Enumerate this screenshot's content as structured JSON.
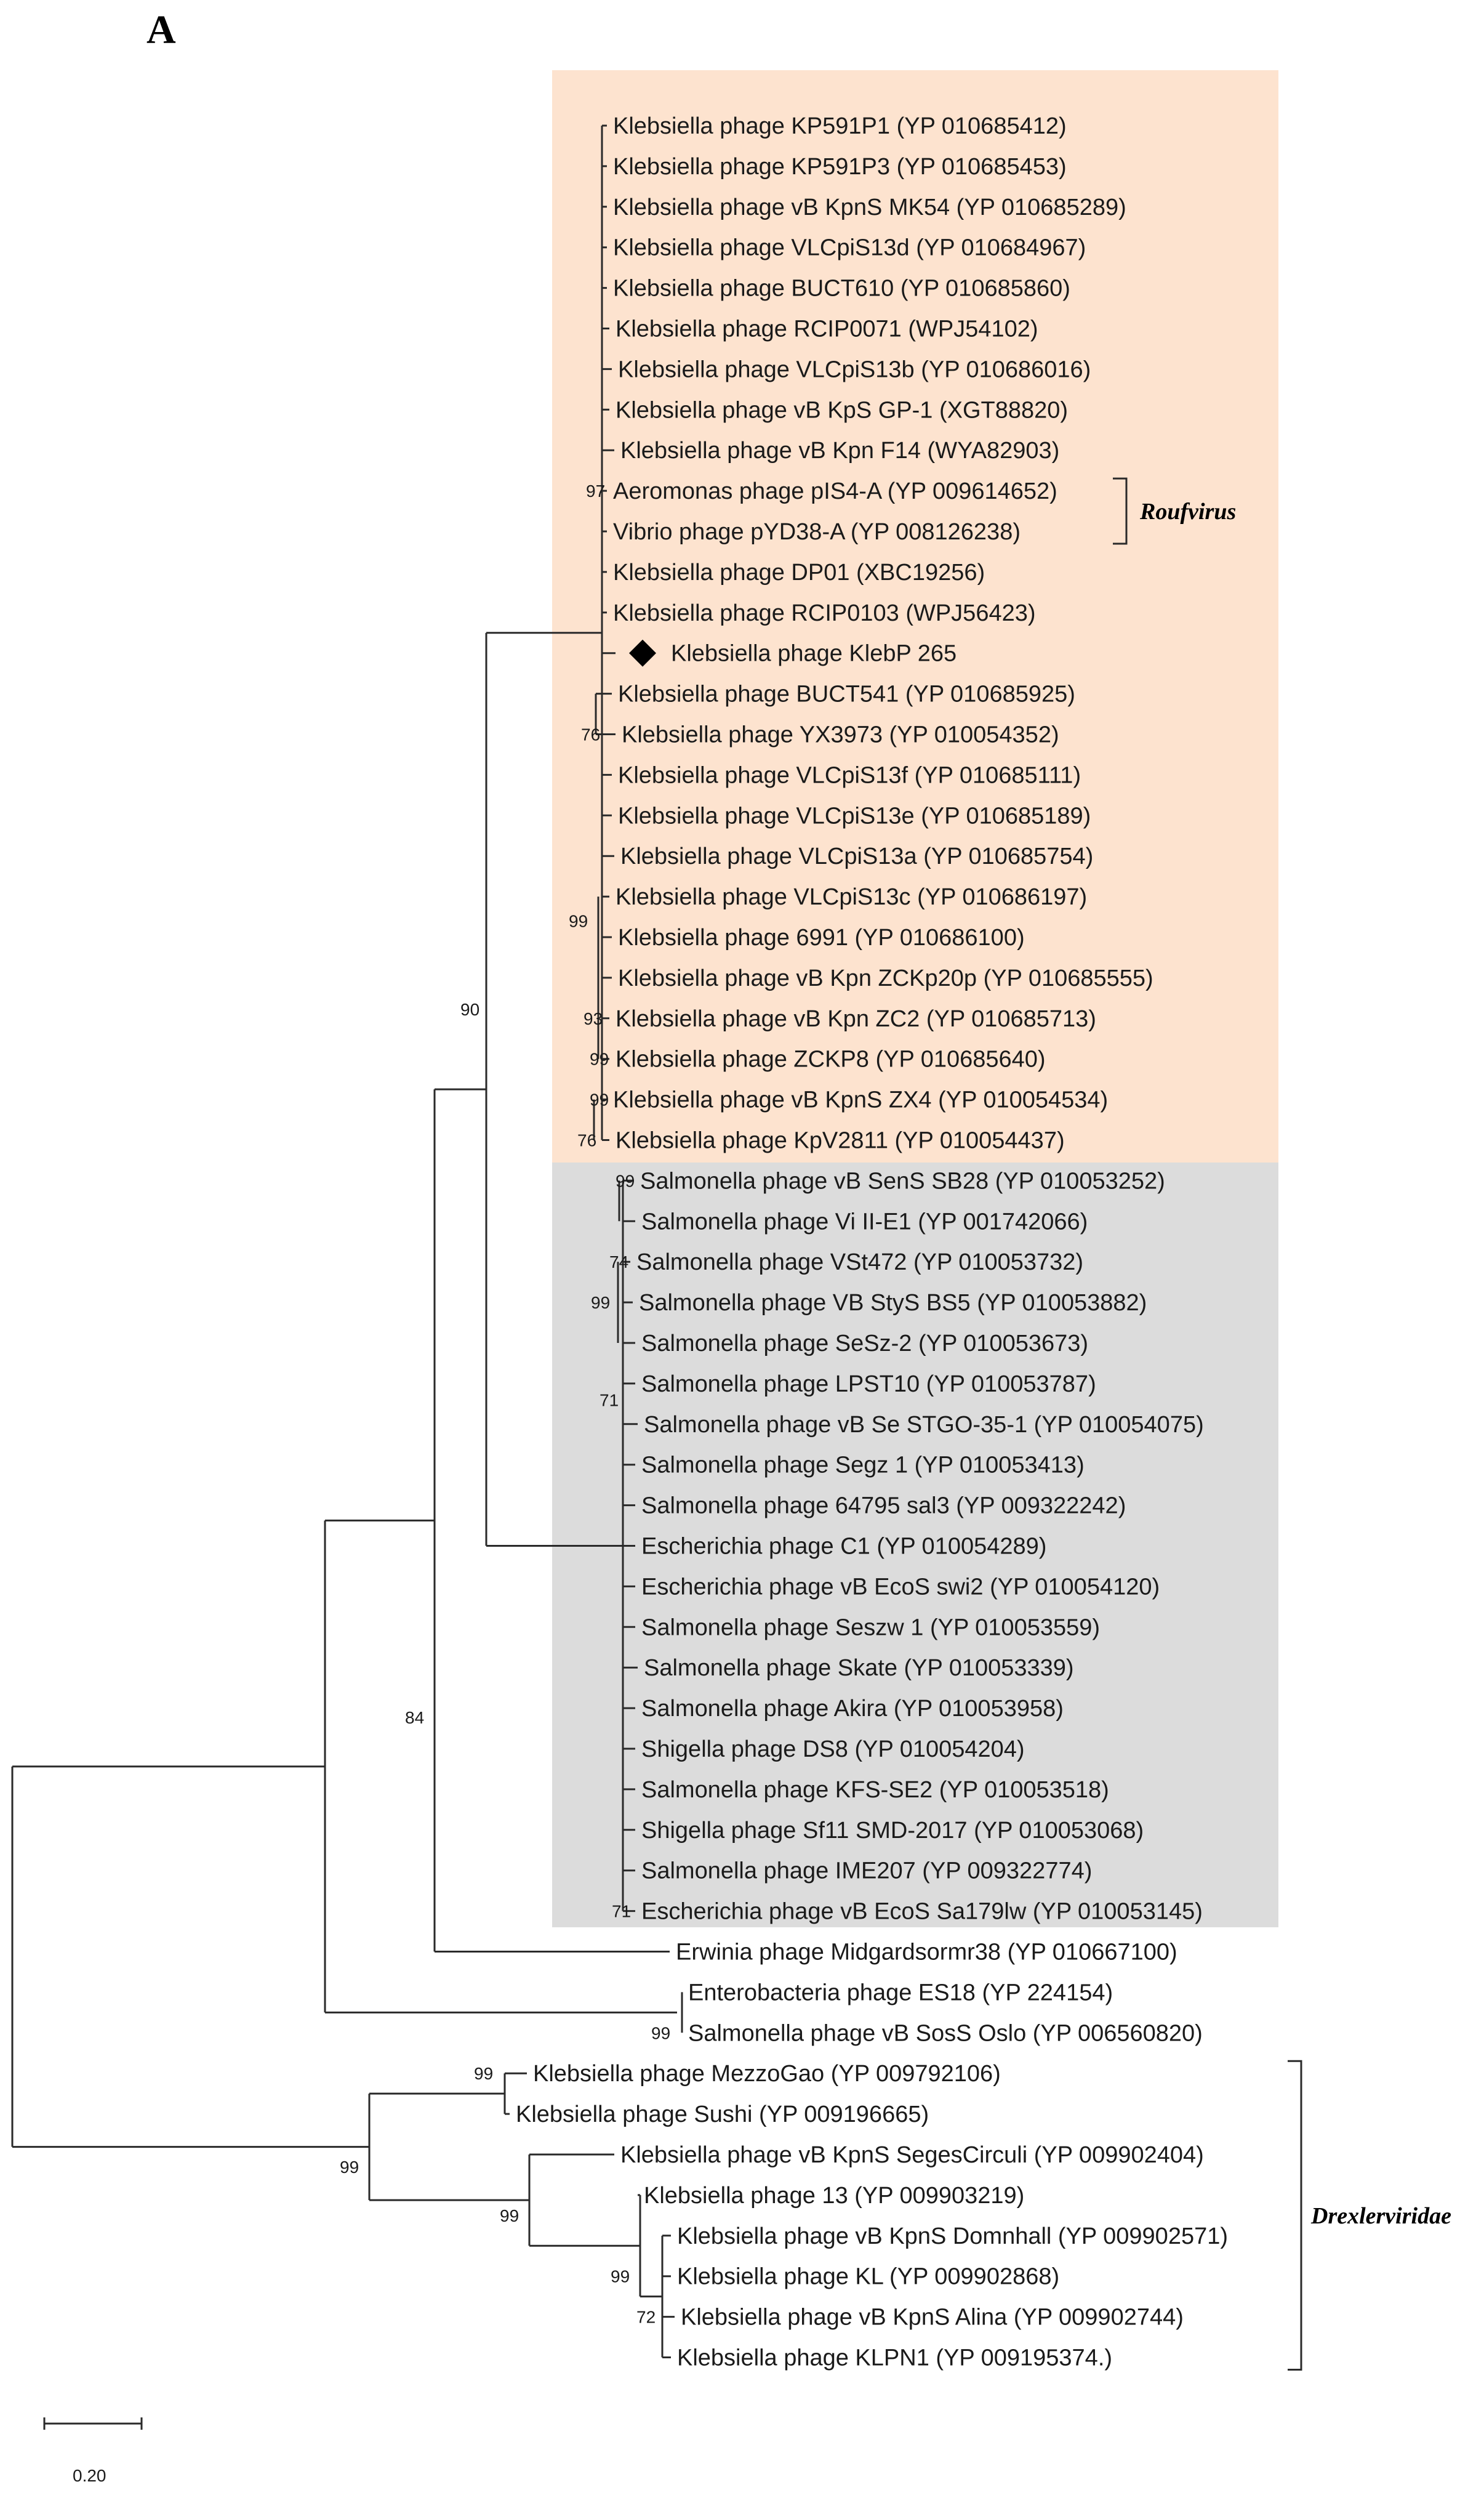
{
  "panel_label": "A",
  "colors": {
    "highlight_roufvirus": "#fde3cf",
    "highlight_salmonella": "#dcdcdc",
    "line": "#2a2a2a",
    "marker": "#000000"
  },
  "leaves": [
    "Klebsiella phage KP591P1 (YP 010685412)",
    "Klebsiella phage KP591P3 (YP 010685453)",
    "Klebsiella phage vB KpnS MK54 (YP 010685289)",
    "Klebsiella phage VLCpiS13d (YP 010684967)",
    "Klebsiella phage BUCT610 (YP 010685860)",
    "Klebsiella phage RCIP0071 (WPJ54102)",
    "Klebsiella phage VLCpiS13b (YP 010686016)",
    "Klebsiella phage vB KpS GP-1 (XGT88820)",
    "Klebsiella phage vB Kpn F14 (WYA82903)",
    "Aeromonas phage pIS4-A (YP 009614652)",
    "Vibrio phage pYD38-A (YP 008126238)",
    "Klebsiella phage DP01 (XBC19256)",
    "Klebsiella phage RCIP0103 (WPJ56423)",
    "Klebsiella phage KlebP 265",
    "Klebsiella phage BUCT541 (YP 010685925)",
    "Klebsiella phage YX3973 (YP 010054352)",
    "Klebsiella phage VLCpiS13f (YP 010685111)",
    "Klebsiella phage VLCpiS13e (YP 010685189)",
    "Klebsiella phage VLCpiS13a (YP 010685754)",
    "Klebsiella phage VLCpiS13c (YP 010686197)",
    "Klebsiella phage 6991 (YP 010686100)",
    "Klebsiella phage vB Kpn ZCKp20p (YP 010685555)",
    "Klebsiella phage vB Kpn ZC2 (YP 010685713)",
    "Klebsiella phage ZCKP8 (YP 010685640)",
    "Klebsiella phage vB KpnS ZX4 (YP 010054534)",
    "Klebsiella phage KpV2811 (YP 010054437)",
    "Salmonella phage vB SenS SB28 (YP 010053252)",
    "Salmonella phage Vi II-E1 (YP 001742066)",
    "Salmonella phage VSt472 (YP 010053732)",
    "Salmonella phage VB StyS BS5 (YP 010053882)",
    "Salmonella phage SeSz-2 (YP 010053673)",
    "Salmonella phage LPST10 (YP 010053787)",
    "Salmonella phage vB Se STGO-35-1 (YP 010054075)",
    "Salmonella phage Segz 1 (YP 010053413)",
    "Salmonella phage 64795 sal3 (YP 009322242)",
    "Escherichia phage C1 (YP 010054289)",
    "Escherichia phage vB EcoS swi2 (YP 010054120)",
    "Salmonella phage Seszw 1 (YP 010053559)",
    "Salmonella phage Skate (YP 010053339)",
    "Salmonella phage Akira (YP 010053958)",
    "Shigella phage DS8 (YP 010054204)",
    "Salmonella phage KFS-SE2 (YP 010053518)",
    "Shigella phage Sf11 SMD-2017 (YP 010053068)",
    "Salmonella phage IME207 (YP 009322774)",
    "Escherichia phage vB EcoS Sa179lw (YP 010053145)",
    "Erwinia phage Midgardsormr38 (YP 010667100)",
    "Enterobacteria phage ES18 (YP 224154)",
    "Salmonella phage vB SosS Oslo (YP 006560820)",
    "Klebsiella phage MezzoGao (YP 009792106)",
    "Klebsiella phage Sushi (YP 009196665)",
    "Klebsiella phage vB KpnS SegesCirculi (YP 009902404)",
    "Klebsiella phage 13 (YP 009903219)",
    "Klebsiella phage vB KpnS Domnhall (YP 009902571)",
    "Klebsiella phage KL (YP 009902868)",
    "Klebsiella phage vB KpnS Alina (YP 009902744)",
    "Klebsiella phage KLPN1 (YP 009195374.)"
  ],
  "bootstrap_values": [
    "97",
    "76",
    "99",
    "93",
    "99",
    "99",
    "90",
    "76",
    "84",
    "99",
    "74",
    "99",
    "71",
    "71",
    "99",
    "99",
    "99",
    "99",
    "99",
    "72"
  ],
  "clades": {
    "roufvirus": "Roufvirus",
    "drexlerviridae": "Drexlerviridae"
  },
  "scale_bar": {
    "value": 0.2,
    "label": "0.20"
  },
  "highlighted_leaf": "Klebsiella phage KlebP 265"
}
